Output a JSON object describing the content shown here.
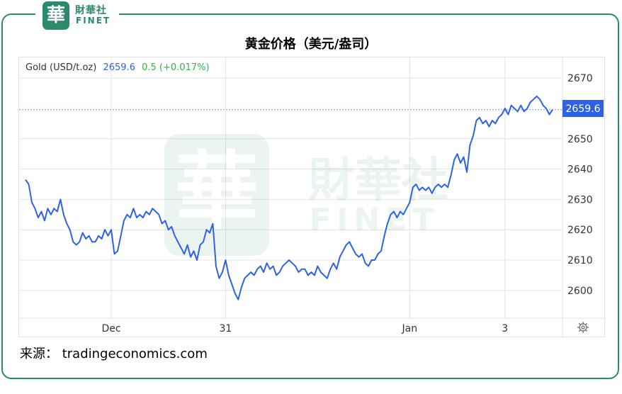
{
  "brand": {
    "seal_char": "華",
    "name_cn": "財華社",
    "name_en": "FINET"
  },
  "title": "黄金价格（美元/盎司）",
  "legend": {
    "label": "Gold (USD/t.oz)",
    "price": "2659.6",
    "change": "0.5 (+0.017%)"
  },
  "current_price_tag": "2659.6",
  "source_text": "来源：  tradingeconomics.com",
  "colors": {
    "line": "#2e62e6",
    "accent": "#2b8a6e",
    "tag": "#2e62e6",
    "change": "#33b342",
    "grid": "#e4e4e4"
  },
  "settings_icon": "gear-icon",
  "chart_data": {
    "type": "line",
    "title": "黄金价格（美元/盎司）",
    "xlabel": "",
    "ylabel": "",
    "ylim": [
      1995,
      2675
    ],
    "x_ticks": [
      {
        "label": "Dec",
        "index": 27
      },
      {
        "label": "31",
        "index": 63
      },
      {
        "label": "Jan",
        "index": 121
      },
      {
        "label": "3",
        "index": 151
      }
    ],
    "y_ticks": [
      2600,
      2610,
      2620,
      2630,
      2640,
      2650,
      2660,
      2670
    ],
    "grid": true,
    "reference_value": 2659.6,
    "series": [
      {
        "name": "Gold (USD/t.oz)",
        "values": [
          2636.5,
          2635,
          2629,
          2627,
          2624,
          2626,
          2623,
          2627,
          2625,
          2627,
          2626,
          2630,
          2625,
          2622,
          2620,
          2616,
          2615,
          2616,
          2619,
          2617,
          2618,
          2616,
          2616,
          2618,
          2617,
          2620,
          2618,
          2620,
          2612,
          2613,
          2618,
          2623,
          2625,
          2624,
          2627,
          2624,
          2625,
          2624,
          2626,
          2625,
          2627,
          2626,
          2625,
          2622,
          2623,
          2620,
          2621,
          2618,
          2616,
          2614,
          2612,
          2615,
          2611,
          2613,
          2610,
          2615,
          2616,
          2620,
          2619,
          2622,
          2608,
          2604,
          2606,
          2610,
          2605,
          2602,
          2599,
          2597,
          2601,
          2604,
          2605,
          2606,
          2605,
          2607,
          2608,
          2606,
          2609,
          2607,
          2608,
          2605,
          2606,
          2608,
          2609,
          2610,
          2609,
          2608,
          2606,
          2607,
          2607,
          2605,
          2606,
          2605,
          2608,
          2606,
          2605,
          2604,
          2607,
          2609,
          2607,
          2611,
          2613,
          2615,
          2616,
          2614,
          2612,
          2611,
          2612,
          2609,
          2608,
          2610,
          2610,
          2612,
          2613,
          2618,
          2622,
          2625,
          2626,
          2624,
          2626,
          2625,
          2627,
          2629,
          2634,
          2635,
          2633,
          2634,
          2633,
          2634,
          2632,
          2634,
          2635,
          2634,
          2635,
          2634,
          2638,
          2643,
          2645,
          2642,
          2644,
          2639,
          2648,
          2651,
          2656,
          2657,
          2655,
          2656,
          2654,
          2656,
          2655,
          2657,
          2658,
          2660,
          2658,
          2661,
          2660,
          2659,
          2661,
          2659,
          2660,
          2662,
          2663,
          2664,
          2663,
          2661,
          2660,
          2658,
          2659.6
        ]
      }
    ]
  }
}
